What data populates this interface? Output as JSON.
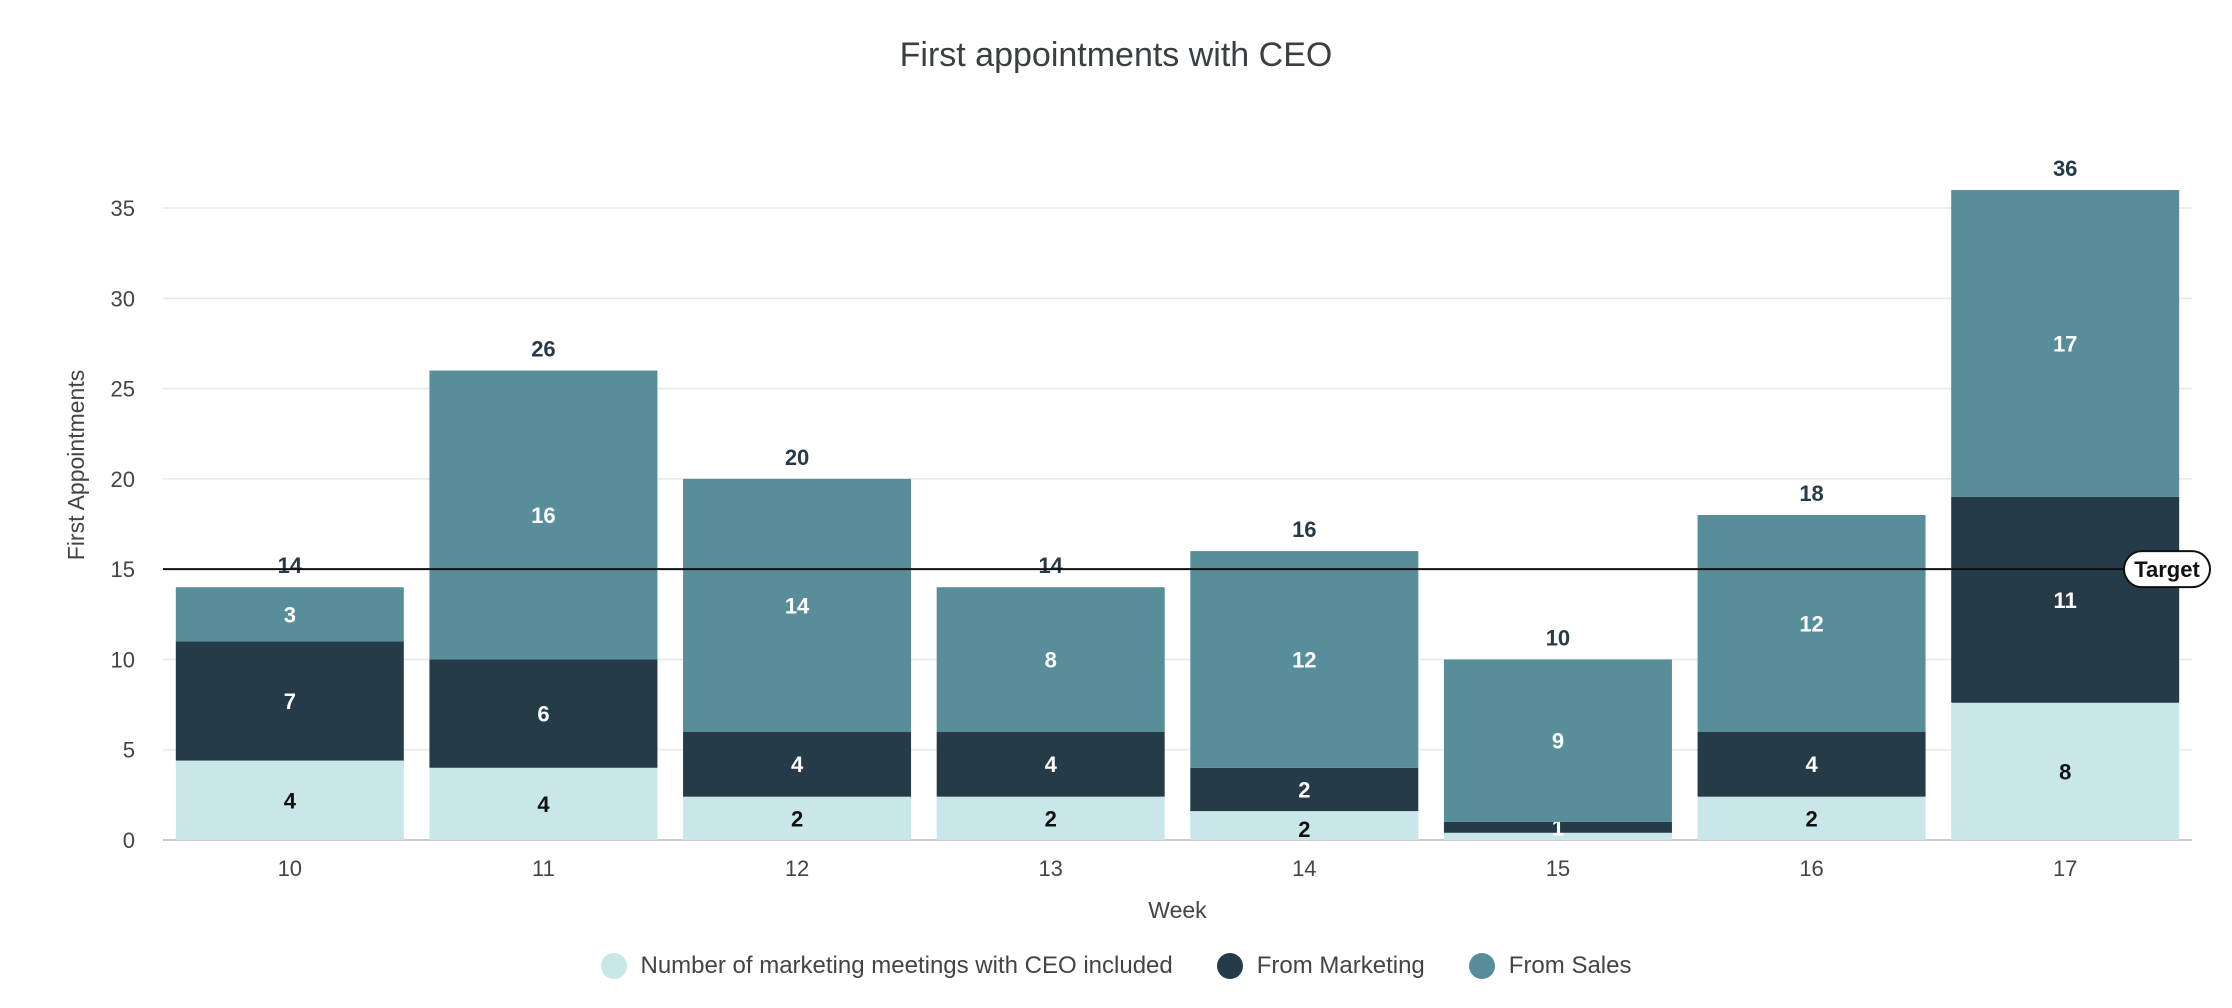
{
  "chart_data": {
    "type": "bar",
    "stacked": true,
    "title": "First appointments with CEO",
    "xlabel": "Week",
    "ylabel": "First Appointments",
    "categories": [
      "10",
      "11",
      "12",
      "13",
      "14",
      "15",
      "16",
      "17"
    ],
    "ylim": [
      0,
      36
    ],
    "yticks": [
      0,
      5,
      10,
      15,
      20,
      25,
      30,
      35
    ],
    "grid": true,
    "legend_position": "bottom",
    "series": [
      {
        "name": "Number of marketing meetings with CEO included",
        "color": "#c9e6e8",
        "label_color": "#111111",
        "values": [
          4.4,
          4,
          2.4,
          2.4,
          1.6,
          0.4,
          2.4,
          7.6
        ],
        "labels": [
          "4",
          "4",
          "2",
          "2",
          "2",
          "",
          "2",
          "8"
        ]
      },
      {
        "name": "From Marketing",
        "color": "#263b48",
        "label_color": "#ffffff",
        "values": [
          6.6,
          6,
          3.6,
          3.6,
          2.4,
          0.6,
          3.6,
          11.4
        ],
        "labels": [
          "7",
          "6",
          "4",
          "4",
          "2",
          "1",
          "4",
          "11"
        ]
      },
      {
        "name": "From Sales",
        "color": "#578e99",
        "label_color": "#ffffff",
        "values": [
          3,
          16,
          14,
          8,
          12,
          9,
          12,
          17
        ],
        "labels": [
          "3",
          "16",
          "14",
          "8",
          "12",
          "9",
          "12",
          "17"
        ]
      }
    ],
    "totals": [
      "14",
      "26",
      "20",
      "14",
      "16",
      "10",
      "18",
      "36"
    ],
    "reference_line": {
      "value": 15,
      "label": "Target"
    }
  }
}
